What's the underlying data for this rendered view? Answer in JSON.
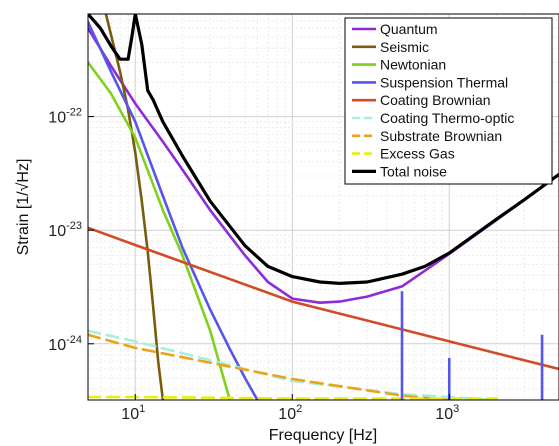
{
  "chart_data": {
    "type": "line",
    "xlabel": "Frequency [Hz]",
    "ylabel": "Strain [1/√Hz]",
    "xscale": "log",
    "yscale": "log",
    "xlim": [
      5,
      5000
    ],
    "ylim": [
      3.2e-25,
      8e-22
    ],
    "grid": true,
    "legend_position": "top-right",
    "x_ticks": [
      {
        "value": 10,
        "base": "10",
        "exp": "1"
      },
      {
        "value": 100,
        "base": "10",
        "exp": "2"
      },
      {
        "value": 1000,
        "base": "10",
        "exp": "3"
      }
    ],
    "y_ticks": [
      {
        "value": 1e-22,
        "base": "10",
        "exp": "-22"
      },
      {
        "value": 1e-23,
        "base": "10",
        "exp": "-23"
      },
      {
        "value": 1e-24,
        "base": "10",
        "exp": "-24"
      }
    ],
    "series": [
      {
        "name": "Quantum",
        "color": "#8f2bd6",
        "dash": false,
        "x": [
          5,
          7,
          10,
          15,
          20,
          30,
          50,
          70,
          100,
          150,
          200,
          300,
          500,
          700,
          1000,
          2000,
          3000,
          5000
        ],
        "y": [
          6e-22,
          2.8e-22,
          1.3e-22,
          6e-23,
          3.4e-23,
          1.5e-23,
          6e-24,
          3.5e-24,
          2.5e-24,
          2.3e-24,
          2.35e-24,
          2.6e-24,
          3.2e-24,
          4.4e-24,
          6.2e-24,
          1.23e-23,
          1.85e-23,
          3.1e-23
        ]
      },
      {
        "name": "Seismic",
        "color": "#7a5c0d",
        "dash": false,
        "x": [
          6.5,
          8,
          9,
          10,
          11,
          12,
          13,
          14,
          15
        ],
        "y": [
          8e-22,
          2.5e-22,
          1.15e-22,
          4.8e-23,
          1.8e-23,
          6.5e-24,
          2.1e-24,
          7e-25,
          3.2e-25
        ]
      },
      {
        "name": "Newtonian",
        "color": "#7fd11b",
        "dash": false,
        "x": [
          5,
          7,
          10,
          15,
          20,
          30,
          40
        ],
        "y": [
          3e-22,
          1.6e-22,
          6.5e-23,
          1.5e-23,
          6e-24,
          1.3e-24,
          3.2e-25
        ]
      },
      {
        "name": "Suspension Thermal",
        "color": "#5656e8",
        "dash": false,
        "x": [
          5,
          7,
          10,
          15,
          20,
          30,
          40,
          50,
          60
        ],
        "y": [
          6.8e-22,
          2.5e-22,
          9e-23,
          2e-23,
          7e-24,
          2e-24,
          9e-25,
          5e-25,
          3.2e-25
        ]
      },
      {
        "name": "Coating Brownian",
        "color": "#d34a26",
        "dash": false,
        "x": [
          5,
          10,
          100,
          1000,
          5000
        ],
        "y": [
          1.05e-23,
          7.4e-24,
          2.35e-24,
          1.05e-24,
          6e-25
        ]
      },
      {
        "name": "Coating Thermo-optic",
        "color": "#a8f0dc",
        "dash": true,
        "x": [
          5,
          10,
          50,
          100,
          500,
          1000,
          2000
        ],
        "y": [
          1.3e-24,
          1.05e-24,
          6e-25,
          4.7e-25,
          3.6e-25,
          3.4e-25,
          3.2e-25
        ]
      },
      {
        "name": "Substrate Brownian",
        "color": "#eda21c",
        "dash": true,
        "x": [
          5,
          10,
          100,
          500,
          1000
        ],
        "y": [
          1.2e-24,
          9.2e-25,
          4.9e-25,
          3.5e-25,
          3.2e-25
        ]
      },
      {
        "name": "Excess Gas",
        "color": "#e6f00a",
        "dash": true,
        "x": [
          5,
          10,
          100,
          1000,
          2000
        ],
        "y": [
          3.4e-25,
          3.4e-25,
          3.3e-25,
          3.3e-25,
          3.3e-25
        ]
      },
      {
        "name": "Total noise",
        "color": "#000000",
        "dash": false,
        "x": [
          5,
          6,
          7,
          8,
          9,
          9.5,
          10,
          11,
          12,
          13,
          15,
          20,
          30,
          50,
          70,
          100,
          150,
          200,
          300,
          500,
          700,
          1000,
          2000,
          3000,
          5000
        ],
        "y": [
          8e-22,
          6e-22,
          4.2e-22,
          3.2e-22,
          3.2e-22,
          5e-22,
          8e-22,
          4.3e-22,
          1.7e-22,
          1.4e-22,
          9e-23,
          4.5e-23,
          1.8e-23,
          7.3e-24,
          4.8e-24,
          3.9e-24,
          3.5e-24,
          3.4e-24,
          3.5e-24,
          4.1e-24,
          4.8e-24,
          6.3e-24,
          1.25e-23,
          1.85e-23,
          3.1e-23
        ]
      }
    ],
    "spikes": [
      {
        "x": 500,
        "y_top": 2.9e-24,
        "color": "#5656e8"
      },
      {
        "x": 1000,
        "y_top": 7.5e-25,
        "color": "#5656e8"
      },
      {
        "x": 3900,
        "y_top": 1.2e-24,
        "color": "#5656e8"
      }
    ]
  }
}
